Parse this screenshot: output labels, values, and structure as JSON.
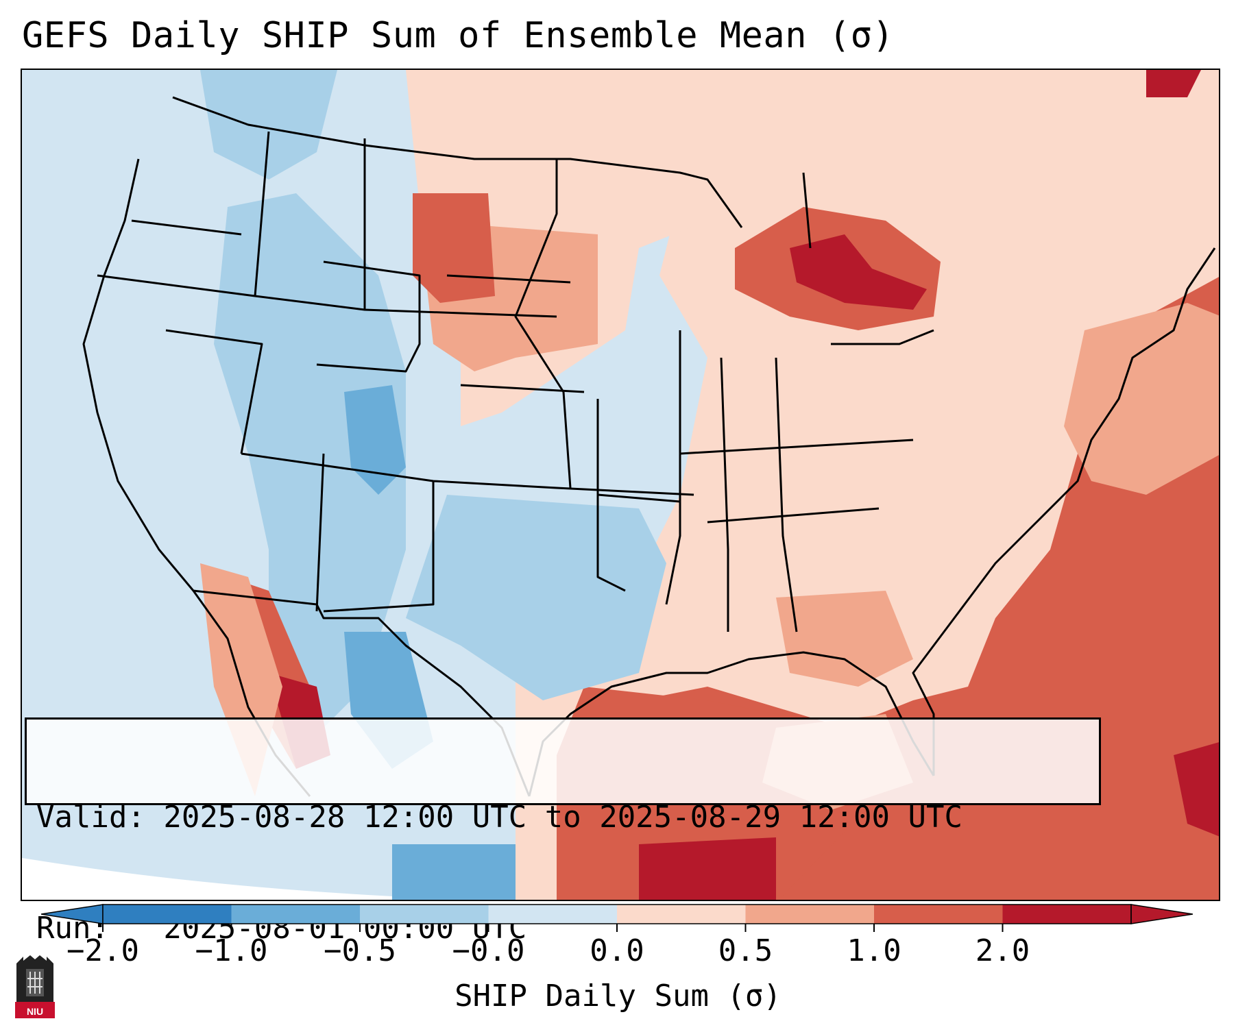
{
  "title": "GEFS Daily SHIP Sum of Ensemble Mean (σ)",
  "info": {
    "valid_line": "Valid: 2025-08-28 12:00 UTC to 2025-08-29 12:00 UTC",
    "run_line": "Run:   2025-08-01 00:00 UTC"
  },
  "colorbar": {
    "label": "SHIP Daily Sum (σ)",
    "ticks": [
      "−2.0",
      "−1.0",
      "−0.5",
      "−0.0",
      "0.0",
      "0.5",
      "1.0",
      "2.0"
    ],
    "colors": [
      "#2f7fc0",
      "#6aadd8",
      "#a8d0e8",
      "#d2e5f2",
      "#fbdacb",
      "#f1a78c",
      "#d75e4b",
      "#b5192b"
    ],
    "extend_low_color": "#2f7fc0",
    "extend_high_color": "#b5192b"
  },
  "map": {
    "background_color": "#d2e5f2",
    "regions": [
      {
        "name": "gulf-of-mexico",
        "level": "1.0"
      },
      {
        "name": "western-atlantic",
        "level": "1.0"
      },
      {
        "name": "great-lakes",
        "level": "2.0"
      },
      {
        "name": "southwest-us",
        "level": "-1.0"
      },
      {
        "name": "northeast-us",
        "level": "0.5"
      }
    ]
  },
  "logo": {
    "text": "NIU"
  }
}
